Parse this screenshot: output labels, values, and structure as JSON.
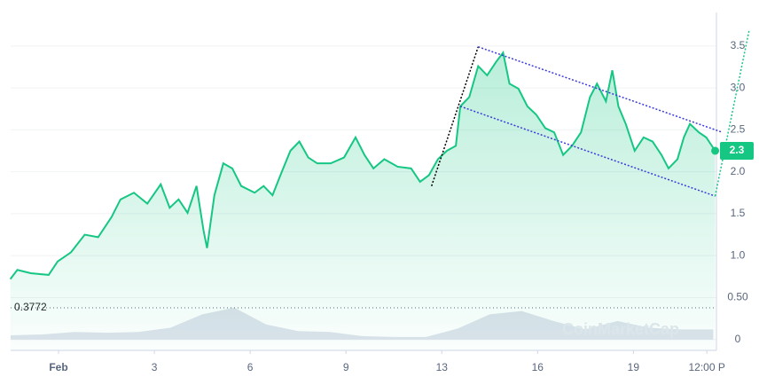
{
  "chart_data": {
    "type": "line",
    "x": [
      -1.51,
      -1.29,
      -0.87,
      -0.31,
      -0.03,
      0.39,
      0.82,
      1.24,
      1.66,
      1.94,
      2.36,
      2.78,
      3.2,
      3.48,
      3.76,
      4.04,
      4.32,
      4.54,
      4.65,
      4.88,
      5.16,
      5.44,
      5.72,
      6.14,
      6.42,
      6.7,
      6.98,
      7.26,
      7.54,
      7.82,
      8.1,
      8.52,
      8.94,
      9.3,
      9.58,
      9.86,
      10.2,
      10.62,
      11.04,
      11.32,
      11.6,
      11.88,
      12.16,
      12.44,
      12.58,
      12.86,
      13.14,
      13.42,
      13.7,
      13.92,
      14.12,
      14.4,
      14.68,
      14.96,
      15.24,
      15.52,
      15.8,
      16.08,
      16.36,
      16.64,
      16.86,
      17.14,
      17.34,
      17.53,
      17.76,
      18.04,
      18.32,
      18.6,
      18.88,
      19.1,
      19.38,
      19.58,
      19.77,
      20.05,
      20.28,
      20.56
    ],
    "series": [
      {
        "color": "#16c784",
        "values": [
          0.72,
          0.83,
          0.79,
          0.77,
          0.93,
          1.04,
          1.25,
          1.22,
          1.46,
          1.67,
          1.75,
          1.62,
          1.85,
          1.57,
          1.67,
          1.51,
          1.83,
          1.3,
          1.09,
          1.72,
          2.1,
          2.04,
          1.83,
          1.75,
          1.83,
          1.72,
          1.99,
          2.25,
          2.36,
          2.17,
          2.1,
          2.1,
          2.17,
          2.41,
          2.2,
          2.04,
          2.15,
          2.06,
          2.04,
          1.88,
          1.96,
          2.15,
          2.25,
          2.31,
          2.78,
          2.89,
          3.26,
          3.15,
          3.31,
          3.42,
          3.05,
          2.99,
          2.78,
          2.68,
          2.52,
          2.47,
          2.2,
          2.31,
          2.47,
          2.89,
          3.05,
          2.84,
          3.21,
          2.78,
          2.57,
          2.25,
          2.41,
          2.36,
          2.2,
          2.04,
          2.15,
          2.41,
          2.57,
          2.47,
          2.41,
          2.25
        ]
      }
    ],
    "volume": {
      "color": "#cfd6e4",
      "x": [
        -1.5,
        -0.5,
        0.5,
        1.5,
        2.5,
        3.5,
        4.5,
        5.5,
        6.5,
        7.5,
        8.5,
        9.5,
        10.5,
        11.5,
        12.5,
        13.5,
        14.5,
        15.5,
        16.5,
        17.5,
        18.5,
        19.5,
        20.5
      ],
      "values": [
        0.05,
        0.06,
        0.09,
        0.08,
        0.09,
        0.14,
        0.3,
        0.38,
        0.18,
        0.1,
        0.09,
        0.04,
        0.03,
        0.03,
        0.13,
        0.3,
        0.34,
        0.22,
        0.12,
        0.22,
        0.14,
        0.12,
        0.12
      ]
    },
    "trendlines": [
      {
        "color": "#000000",
        "x": [
          11.68,
          13.14
        ],
        "y": [
          1.83,
          3.49
        ]
      },
      {
        "color": "#3b3bdb",
        "x": [
          13.14,
          20.79
        ],
        "y": [
          3.49,
          2.47
        ]
      },
      {
        "color": "#3b3bdb",
        "x": [
          12.58,
          20.56
        ],
        "y": [
          2.78,
          1.71
        ]
      },
      {
        "color": "#16c784",
        "x": [
          20.56,
          21.62
        ],
        "y": [
          1.71,
          3.68
        ]
      }
    ],
    "reference_line": 0.3772,
    "current_price": {
      "value": 2.25,
      "label": "2.3"
    },
    "watermark": "CoinMarketCap",
    "xlim": [
      -1.5,
      20.6
    ],
    "ylim": [
      -0.13,
      3.9
    ],
    "xticks": [
      {
        "value": 0,
        "label": "Feb"
      },
      3,
      6,
      9,
      {
        "value": 12,
        "label": "13"
      },
      {
        "value": 15,
        "label": "16"
      },
      {
        "value": 18,
        "label": "19"
      },
      {
        "value": 20.3,
        "label": "12:00 P"
      }
    ],
    "yticks": [
      0,
      {
        "value": 0.5,
        "label": "0.50"
      },
      {
        "value": 1,
        "label": "1.0"
      },
      {
        "value": 1.5,
        "label": "1.5"
      },
      {
        "value": 2,
        "label": "2.0"
      },
      {
        "value": 2.5,
        "label": "2.5"
      },
      {
        "value": 3,
        "label": "3.0"
      },
      {
        "value": 3.5,
        "label": "3.5"
      }
    ],
    "grid": true
  }
}
